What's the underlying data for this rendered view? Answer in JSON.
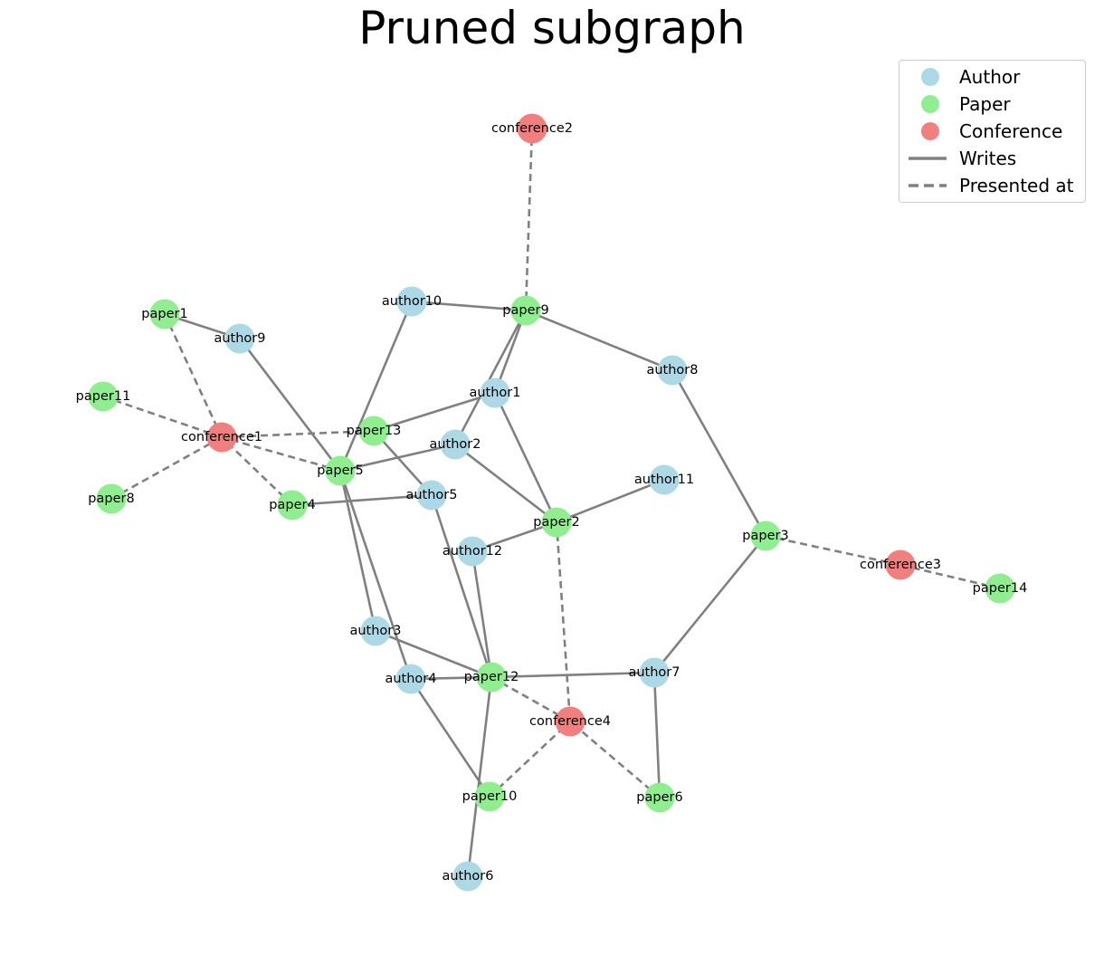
{
  "title": "Pruned subgraph",
  "colors": {
    "author": "#add8e6",
    "paper": "#90ee90",
    "conference": "#f08080",
    "edge": "#808080"
  },
  "legend": {
    "author": "Author",
    "paper": "Paper",
    "conference": "Conference",
    "writes": "Writes",
    "presented_at": "Presented at"
  },
  "nodes": [
    {
      "id": "conference2",
      "type": "conference"
    },
    {
      "id": "author10",
      "type": "author"
    },
    {
      "id": "paper9",
      "type": "paper"
    },
    {
      "id": "paper1",
      "type": "paper"
    },
    {
      "id": "author9",
      "type": "author"
    },
    {
      "id": "author8",
      "type": "author"
    },
    {
      "id": "paper11",
      "type": "paper"
    },
    {
      "id": "author1",
      "type": "author"
    },
    {
      "id": "conference1",
      "type": "conference"
    },
    {
      "id": "paper13",
      "type": "paper"
    },
    {
      "id": "author2",
      "type": "author"
    },
    {
      "id": "paper5",
      "type": "paper"
    },
    {
      "id": "author11",
      "type": "author"
    },
    {
      "id": "paper8",
      "type": "paper"
    },
    {
      "id": "author5",
      "type": "author"
    },
    {
      "id": "paper4",
      "type": "paper"
    },
    {
      "id": "paper2",
      "type": "paper"
    },
    {
      "id": "paper3",
      "type": "paper"
    },
    {
      "id": "author12",
      "type": "author"
    },
    {
      "id": "conference3",
      "type": "conference"
    },
    {
      "id": "paper14",
      "type": "paper"
    },
    {
      "id": "author3",
      "type": "author"
    },
    {
      "id": "author7",
      "type": "author"
    },
    {
      "id": "author4",
      "type": "author"
    },
    {
      "id": "paper12",
      "type": "paper"
    },
    {
      "id": "conference4",
      "type": "conference"
    },
    {
      "id": "paper10",
      "type": "paper"
    },
    {
      "id": "paper6",
      "type": "paper"
    },
    {
      "id": "author6",
      "type": "author"
    }
  ],
  "edges": [
    {
      "source": "paper9",
      "target": "conference2",
      "relation": "presented_at"
    },
    {
      "source": "author10",
      "target": "paper9",
      "relation": "writes"
    },
    {
      "source": "author10",
      "target": "paper5",
      "relation": "writes"
    },
    {
      "source": "author8",
      "target": "paper9",
      "relation": "writes"
    },
    {
      "source": "author8",
      "target": "paper3",
      "relation": "writes"
    },
    {
      "source": "author1",
      "target": "paper9",
      "relation": "writes"
    },
    {
      "source": "author2",
      "target": "paper9",
      "relation": "writes"
    },
    {
      "source": "author9",
      "target": "paper1",
      "relation": "writes"
    },
    {
      "source": "author9",
      "target": "paper5",
      "relation": "writes"
    },
    {
      "source": "paper1",
      "target": "conference1",
      "relation": "presented_at"
    },
    {
      "source": "paper11",
      "target": "conference1",
      "relation": "presented_at"
    },
    {
      "source": "paper8",
      "target": "conference1",
      "relation": "presented_at"
    },
    {
      "source": "paper13",
      "target": "conference1",
      "relation": "presented_at"
    },
    {
      "source": "paper5",
      "target": "conference1",
      "relation": "presented_at"
    },
    {
      "source": "paper4",
      "target": "conference1",
      "relation": "presented_at"
    },
    {
      "source": "author1",
      "target": "paper13",
      "relation": "writes"
    },
    {
      "source": "author1",
      "target": "paper2",
      "relation": "writes"
    },
    {
      "source": "author2",
      "target": "paper5",
      "relation": "writes"
    },
    {
      "source": "author2",
      "target": "paper2",
      "relation": "writes"
    },
    {
      "source": "author5",
      "target": "paper13",
      "relation": "writes"
    },
    {
      "source": "author5",
      "target": "paper4",
      "relation": "writes"
    },
    {
      "source": "author5",
      "target": "paper12",
      "relation": "writes"
    },
    {
      "source": "author3",
      "target": "paper5",
      "relation": "writes"
    },
    {
      "source": "author3",
      "target": "paper12",
      "relation": "writes"
    },
    {
      "source": "author4",
      "target": "paper5",
      "relation": "writes"
    },
    {
      "source": "author4",
      "target": "paper12",
      "relation": "writes"
    },
    {
      "source": "author4",
      "target": "paper10",
      "relation": "writes"
    },
    {
      "source": "author12",
      "target": "paper2",
      "relation": "writes"
    },
    {
      "source": "author12",
      "target": "paper12",
      "relation": "writes"
    },
    {
      "source": "author11",
      "target": "paper2",
      "relation": "writes"
    },
    {
      "source": "paper2",
      "target": "conference4",
      "relation": "presented_at"
    },
    {
      "source": "author7",
      "target": "paper3",
      "relation": "writes"
    },
    {
      "source": "author7",
      "target": "paper12",
      "relation": "writes"
    },
    {
      "source": "author7",
      "target": "paper6",
      "relation": "writes"
    },
    {
      "source": "paper3",
      "target": "conference3",
      "relation": "presented_at"
    },
    {
      "source": "paper14",
      "target": "conference3",
      "relation": "presented_at"
    },
    {
      "source": "paper12",
      "target": "conference4",
      "relation": "presented_at"
    },
    {
      "source": "paper10",
      "target": "conference4",
      "relation": "presented_at"
    },
    {
      "source": "paper6",
      "target": "conference4",
      "relation": "presented_at"
    },
    {
      "source": "author6",
      "target": "paper12",
      "relation": "writes"
    }
  ]
}
